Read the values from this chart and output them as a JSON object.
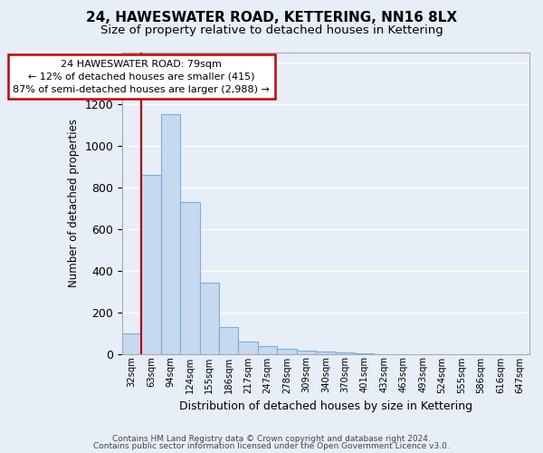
{
  "title": "24, HAWESWATER ROAD, KETTERING, NN16 8LX",
  "subtitle": "Size of property relative to detached houses in Kettering",
  "xlabel": "Distribution of detached houses by size in Kettering",
  "ylabel": "Number of detached properties",
  "bins": [
    "32sqm",
    "63sqm",
    "94sqm",
    "124sqm",
    "155sqm",
    "186sqm",
    "217sqm",
    "247sqm",
    "278sqm",
    "309sqm",
    "340sqm",
    "370sqm",
    "401sqm",
    "432sqm",
    "463sqm",
    "493sqm",
    "524sqm",
    "555sqm",
    "586sqm",
    "616sqm",
    "647sqm"
  ],
  "values": [
    100,
    860,
    1150,
    730,
    340,
    130,
    60,
    35,
    25,
    15,
    10,
    5,
    2,
    0,
    0,
    0,
    0,
    0,
    0,
    0,
    0
  ],
  "bar_color": "#c5d9f0",
  "bar_edge_color": "#7bafd4",
  "annotation_text": "24 HAWESWATER ROAD: 79sqm\n← 12% of detached houses are smaller (415)\n87% of semi-detached houses are larger (2,988) →",
  "annotation_box_color": "#ffffff",
  "annotation_box_edge": "#cc0000",
  "ylim": [
    0,
    1450
  ],
  "footer1": "Contains HM Land Registry data © Crown copyright and database right 2024.",
  "footer2": "Contains public sector information licensed under the Open Government Licence v3.0.",
  "bg_color": "#e8eef8",
  "plot_bg_color": "#e8eef8",
  "grid_color": "#ffffff",
  "title_fontsize": 11,
  "subtitle_fontsize": 9.5,
  "red_line_color": "#cc0000"
}
